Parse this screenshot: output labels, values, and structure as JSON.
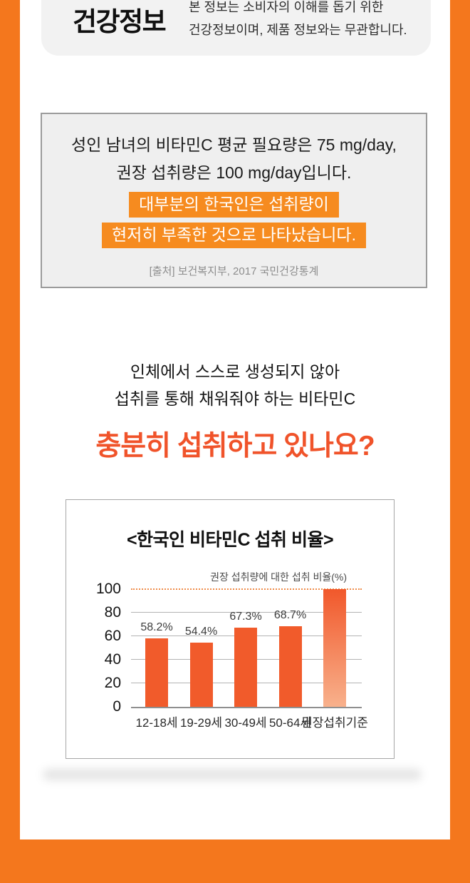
{
  "colors": {
    "frame_orange": "#f4771d",
    "highlight_orange": "#f68b1f",
    "heading_orange": "#f0532a",
    "bar_orange": "#f15b2b",
    "reference_bar_top": "#f1582b",
    "reference_bar_bottom": "#f8b18c",
    "dotted_line_orange": "#ef8c4a",
    "info_box_background": "#efefef",
    "info_box_border": "#9b9b9b",
    "header_card_background": "#f2f2f2"
  },
  "header_card": {
    "title": "건강정보",
    "description_line1": "본 정보는 소비자의 이해를 돕기 위한",
    "description_line2": "건강정보이며, 제품 정보와는 무관합니다."
  },
  "info_box": {
    "line1": "성인 남녀의 비타민C 평균 필요량은 75 mg/day,",
    "line2": "권장 섭취량은 100 mg/day입니다.",
    "highlight_line1": "대부분의 한국인은 섭취량이",
    "highlight_line2": "현저히 부족한 것으로 나타났습니다.",
    "source": "[출처] 보건복지부, 2017 국민건강통계"
  },
  "intro": {
    "line1": "인체에서 스스로 생성되지 않아",
    "line2": "섭취를 통해 채워줘야 하는 비타민C",
    "question": "충분히 섭취하고 있나요?"
  },
  "chart_data": {
    "type": "bar",
    "title": "<한국인 비타민C 섭취 비율>",
    "unit_label": "권장 섭취량에 대한 섭취 비율(%)",
    "categories": [
      "12-18세",
      "19-29세",
      "30-49세",
      "50-64세",
      "권장섭취기준"
    ],
    "values": [
      58.2,
      54.4,
      67.3,
      68.7,
      100
    ],
    "value_labels": [
      "58.2%",
      "54.4%",
      "67.3%",
      "68.7%",
      ""
    ],
    "yticks": [
      0,
      20,
      40,
      60,
      80,
      100
    ],
    "ylim": [
      0,
      100
    ],
    "grid": true,
    "legend": "none",
    "reference_line": 100,
    "reference_index": 4,
    "xlabel": "",
    "ylabel": ""
  }
}
